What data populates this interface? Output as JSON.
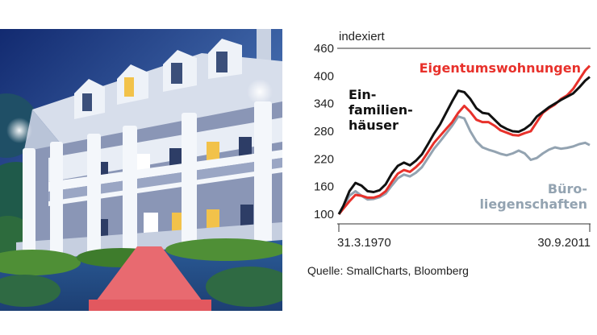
{
  "chart_data": {
    "type": "line",
    "unit_label": "indexiert",
    "x_start_label": "31.3.1970",
    "x_end_label": "30.9.2011",
    "x_range": [
      1970.25,
      2011.75
    ],
    "ylim": [
      100,
      460
    ],
    "yticks": [
      100,
      160,
      220,
      280,
      340,
      400,
      460
    ],
    "grid": false,
    "series": [
      {
        "name": "Eigentumswohnungen",
        "label_lines": [
          "Eigentumswohnungen"
        ],
        "color": "#e8312b",
        "x": [
          1970.25,
          1971,
          1972,
          1973,
          1974,
          1975,
          1976,
          1977,
          1978,
          1979,
          1980,
          1981,
          1982,
          1983,
          1984,
          1985,
          1986,
          1987,
          1988,
          1989,
          1990,
          1991,
          1992,
          1993,
          1994,
          1995,
          1996,
          1997,
          1998,
          1999,
          2000,
          2001,
          2002,
          2003,
          2004,
          2005,
          2006,
          2007,
          2008,
          2009,
          2010,
          2011,
          2011.75
        ],
        "values": [
          100,
          112,
          128,
          142,
          140,
          136,
          136,
          140,
          150,
          170,
          188,
          196,
          192,
          202,
          215,
          235,
          255,
          270,
          285,
          300,
          320,
          335,
          322,
          305,
          300,
          300,
          292,
          282,
          277,
          272,
          271,
          276,
          280,
          300,
          320,
          330,
          338,
          350,
          358,
          372,
          392,
          412,
          422
        ]
      },
      {
        "name": "Einfamilienhäuser",
        "label_lines": [
          "Ein-",
          "familien-",
          "häuser"
        ],
        "color": "#111111",
        "x": [
          1970.25,
          1971,
          1972,
          1973,
          1974,
          1975,
          1976,
          1977,
          1978,
          1979,
          1980,
          1981,
          1982,
          1983,
          1984,
          1985,
          1986,
          1987,
          1988,
          1989,
          1990,
          1991,
          1992,
          1993,
          1994,
          1995,
          1996,
          1997,
          1998,
          1999,
          2000,
          2001,
          2002,
          2003,
          2004,
          2005,
          2006,
          2007,
          2008,
          2009,
          2010,
          2011,
          2011.75
        ],
        "values": [
          100,
          118,
          150,
          168,
          162,
          150,
          148,
          152,
          165,
          188,
          205,
          212,
          206,
          216,
          230,
          252,
          275,
          295,
          320,
          345,
          368,
          365,
          350,
          330,
          320,
          318,
          305,
          292,
          285,
          280,
          279,
          285,
          295,
          312,
          322,
          332,
          340,
          348,
          355,
          362,
          375,
          390,
          398
        ]
      },
      {
        "name": "Büroliegenschaften",
        "label_lines": [
          "Büro-",
          "liegenschaften"
        ],
        "color": "#93a3b1",
        "x": [
          1970.25,
          1971,
          1972,
          1973,
          1974,
          1975,
          1976,
          1977,
          1978,
          1979,
          1980,
          1981,
          1982,
          1983,
          1984,
          1985,
          1986,
          1987,
          1988,
          1989,
          1990,
          1991,
          1992,
          1993,
          1994,
          1995,
          1996,
          1997,
          1998,
          1999,
          2000,
          2001,
          2002,
          2003,
          2004,
          2005,
          2006,
          2007,
          2008,
          2009,
          2010,
          2011,
          2011.75
        ],
        "values": [
          100,
          115,
          140,
          150,
          140,
          132,
          133,
          137,
          145,
          162,
          178,
          186,
          182,
          190,
          202,
          222,
          242,
          258,
          275,
          292,
          312,
          308,
          280,
          258,
          245,
          240,
          236,
          231,
          228,
          232,
          238,
          232,
          218,
          222,
          232,
          240,
          245,
          242,
          244,
          247,
          252,
          255,
          250
        ]
      }
    ]
  },
  "source_text": "Quelle: SmallCharts, Bloomberg",
  "illustration": {
    "icon": "southern-plantation-house-illustration",
    "colors": {
      "sky_top": "#1a2f78",
      "sky_bottom": "#7a9ec8",
      "columns": "#f4f7fb",
      "roof": "#dde3ee",
      "lawn": "#244f8a",
      "path": "#e86a70",
      "foliage": "#5a9e3c",
      "window_light": "#f2c24a"
    }
  }
}
